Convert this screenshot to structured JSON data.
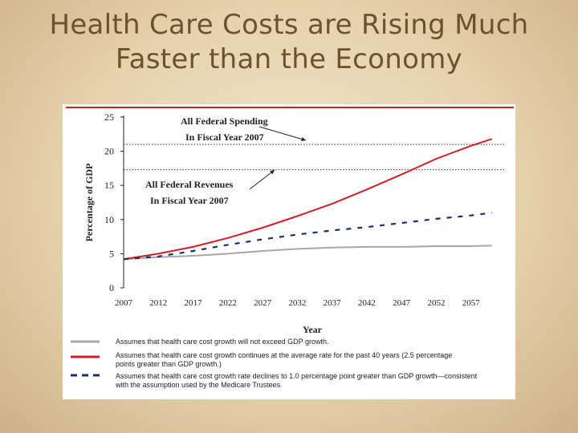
{
  "slide": {
    "title_line1": "Health Care Costs are Rising Much",
    "title_line2": "Faster than the Economy"
  },
  "colors": {
    "red": "#d21f26",
    "blue": "#1b2b7a",
    "gray": "#a7a7a7",
    "title": "#6b5330"
  },
  "chart_data": {
    "type": "line",
    "title": "",
    "xlabel": "Year",
    "ylabel": "Percentage of GDP",
    "xlim": [
      2007,
      2062
    ],
    "ylim": [
      0,
      25
    ],
    "x_ticks": [
      "2007",
      "2012",
      "2017",
      "2022",
      "2027",
      "2032",
      "2037",
      "2042",
      "2047",
      "2052",
      "2057"
    ],
    "y_ticks": [
      "0",
      "5",
      "10",
      "15",
      "20",
      "25"
    ],
    "reference_lines": [
      {
        "value": 21,
        "label_line1": "All Federal Spending",
        "label_line2": "In Fiscal Year 2007"
      },
      {
        "value": 17.3,
        "label_line1": "All Federal Revenues",
        "label_line2": "In Fiscal Year 2007"
      }
    ],
    "series": [
      {
        "key": "gray",
        "style": "solid",
        "x": [
          2007,
          2012,
          2017,
          2022,
          2027,
          2032,
          2037,
          2042,
          2047,
          2052,
          2057,
          2060
        ],
        "y": [
          4.2,
          4.5,
          4.7,
          5.0,
          5.4,
          5.7,
          5.9,
          6.0,
          6.0,
          6.1,
          6.1,
          6.2
        ],
        "legend_text": "Assumes that health care cost growth will not exceed GDP growth."
      },
      {
        "key": "red",
        "style": "solid",
        "x": [
          2007,
          2012,
          2017,
          2022,
          2027,
          2032,
          2037,
          2042,
          2047,
          2052,
          2057,
          2060
        ],
        "y": [
          4.2,
          5.0,
          6.0,
          7.3,
          8.8,
          10.5,
          12.3,
          14.4,
          16.6,
          18.9,
          20.8,
          21.8
        ],
        "legend_text": "Assumes that health care cost growth continues at the average rate for the past 40 years (2.5 percentage points greater than GDP growth.)"
      },
      {
        "key": "blue",
        "style": "dashed",
        "x": [
          2007,
          2012,
          2017,
          2022,
          2027,
          2032,
          2037,
          2042,
          2047,
          2052,
          2057,
          2060
        ],
        "y": [
          4.2,
          4.6,
          5.4,
          6.3,
          7.1,
          7.8,
          8.4,
          8.9,
          9.5,
          10.1,
          10.6,
          11.0
        ],
        "legend_text": "Assumes that health care cost growth rate declines to 1.0 percentage point greater than GDP growth—consistent with the assumption used by the Medicare Trustees"
      }
    ],
    "grid": false,
    "legend": "bottom"
  }
}
